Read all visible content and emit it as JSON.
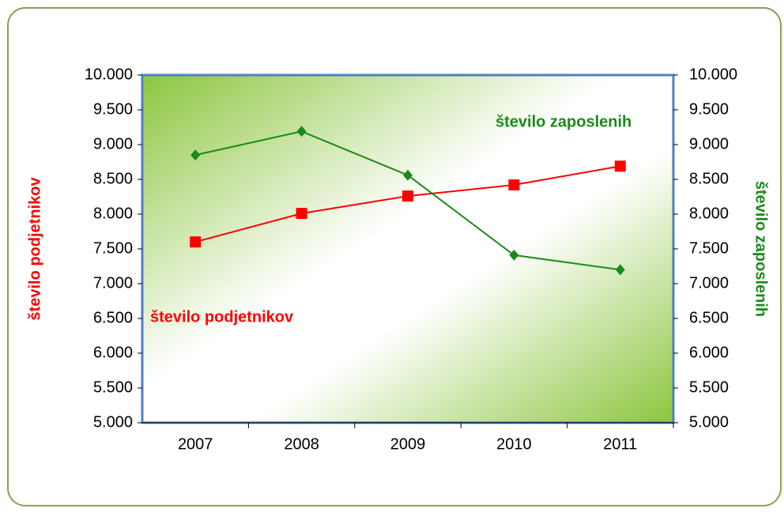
{
  "chart_data": {
    "type": "line",
    "categories": [
      "2007",
      "2008",
      "2009",
      "2010",
      "2011"
    ],
    "series": [
      {
        "name": "število podjetnikov",
        "color": "#ff0000",
        "values": [
          7600,
          8010,
          8260,
          8420,
          8690
        ]
      },
      {
        "name": "število zaposlenih",
        "color": "#1a8a1a",
        "values": [
          8850,
          9190,
          8560,
          7410,
          7200
        ],
        "axis": "y2"
      }
    ],
    "ylabel": "število podjetnikov",
    "y2label": "število zaposlenih",
    "ylim": [
      5000,
      10000
    ],
    "yticks": [
      {
        "value": 5000,
        "label": "5.000"
      },
      {
        "value": 5500,
        "label": "5.500"
      },
      {
        "value": 6000,
        "label": "6.000"
      },
      {
        "value": 6500,
        "label": "6.500"
      },
      {
        "value": 7000,
        "label": "7.000"
      },
      {
        "value": 7500,
        "label": "7.500"
      },
      {
        "value": 8000,
        "label": "8.000"
      },
      {
        "value": 8500,
        "label": "8.500"
      },
      {
        "value": 9000,
        "label": "9.000"
      },
      {
        "value": 9500,
        "label": "9.500"
      },
      {
        "value": 10000,
        "label": "10.000"
      }
    ],
    "y2lim": [
      5000,
      10000
    ],
    "y2ticks": [
      {
        "value": 5000,
        "label": "5.000"
      },
      {
        "value": 5500,
        "label": "5.500"
      },
      {
        "value": 6000,
        "label": "6.000"
      },
      {
        "value": 6500,
        "label": "6.500"
      },
      {
        "value": 7000,
        "label": "7.000"
      },
      {
        "value": 7500,
        "label": "7.500"
      },
      {
        "value": 8000,
        "label": "8.000"
      },
      {
        "value": 8500,
        "label": "8.500"
      },
      {
        "value": 9000,
        "label": "9.000"
      },
      {
        "value": 9500,
        "label": "9.500"
      },
      {
        "value": 10000,
        "label": "10.000"
      }
    ]
  }
}
